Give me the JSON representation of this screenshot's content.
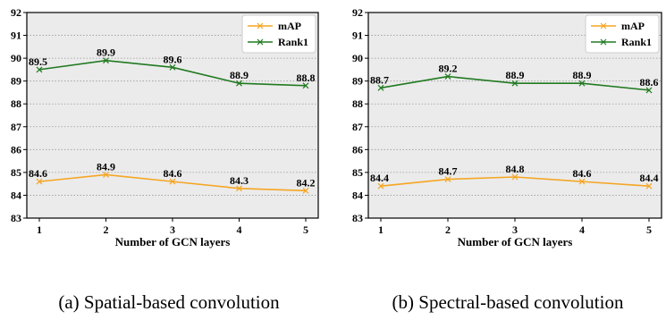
{
  "chart_data": [
    {
      "type": "line",
      "caption": "(a)  Spatial-based convolution",
      "xlabel": "Number of GCN layers",
      "ylabel": "",
      "categories": [
        "1",
        "2",
        "3",
        "4",
        "5"
      ],
      "ylim": [
        83,
        92
      ],
      "yticks": [
        "83",
        "84",
        "85",
        "86",
        "87",
        "88",
        "89",
        "90",
        "91",
        "92"
      ],
      "grid": "horizontal-dotted",
      "legend": "top-right",
      "series": [
        {
          "name": "mAP",
          "color": "#f5a623",
          "marker": "x",
          "values": [
            84.6,
            84.9,
            84.6,
            84.3,
            84.2
          ],
          "labels": [
            "84.6",
            "84.9",
            "84.6",
            "84.3",
            "84.2"
          ]
        },
        {
          "name": "Rank1",
          "color": "#217a21",
          "marker": "x",
          "values": [
            89.5,
            89.9,
            89.6,
            88.9,
            88.8
          ],
          "labels": [
            "89.5",
            "89.9",
            "89.6",
            "88.9",
            "88.8"
          ]
        }
      ]
    },
    {
      "type": "line",
      "caption": "(b)  Spectral-based convolution",
      "xlabel": "Number of GCN layers",
      "ylabel": "",
      "categories": [
        "1",
        "2",
        "3",
        "4",
        "5"
      ],
      "ylim": [
        83,
        92
      ],
      "yticks": [
        "83",
        "84",
        "85",
        "86",
        "87",
        "88",
        "89",
        "90",
        "91",
        "92"
      ],
      "grid": "horizontal-dotted",
      "legend": "top-right",
      "series": [
        {
          "name": "mAP",
          "color": "#f5a623",
          "marker": "x",
          "values": [
            84.4,
            84.7,
            84.8,
            84.6,
            84.4
          ],
          "labels": [
            "84.4",
            "84.7",
            "84.8",
            "84.6",
            "84.4"
          ]
        },
        {
          "name": "Rank1",
          "color": "#217a21",
          "marker": "x",
          "values": [
            88.7,
            89.2,
            88.9,
            88.9,
            88.6
          ],
          "labels": [
            "88.7",
            "89.2",
            "88.9",
            "88.9",
            "88.6"
          ]
        }
      ]
    }
  ]
}
